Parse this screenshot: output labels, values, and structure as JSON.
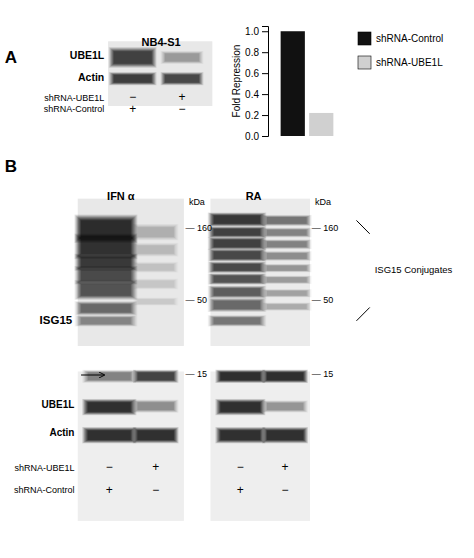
{
  "chart_data": {
    "type": "bar",
    "categories": [
      null
    ],
    "series": [
      {
        "name": "shRNA-Control",
        "color": "#111111",
        "values": [
          1.0
        ]
      },
      {
        "name": "shRNA-UBE1L",
        "color": "#d0d0d0",
        "values": [
          0.22
        ]
      }
    ],
    "ylabel": "Fold Repression",
    "ylim": [
      0,
      1.05
    ],
    "yticks": [
      {
        "value": 0.0,
        "label": "0.0"
      },
      0.2,
      0.4,
      0.6,
      0.8,
      {
        "value": 1.0,
        "label": "1.0"
      }
    ],
    "grid": false,
    "legend": "right",
    "annotations": [
      "A",
      "B",
      "NB4-S1",
      "UBE1L",
      "Actin",
      "shRNA-UBE1L",
      "shRNA-Control",
      "−",
      "+",
      "IFN α",
      "RA",
      "ISG15",
      "kDa",
      "— 160",
      "— 50",
      "— 15",
      "ISG15 Conjugates"
    ]
  }
}
